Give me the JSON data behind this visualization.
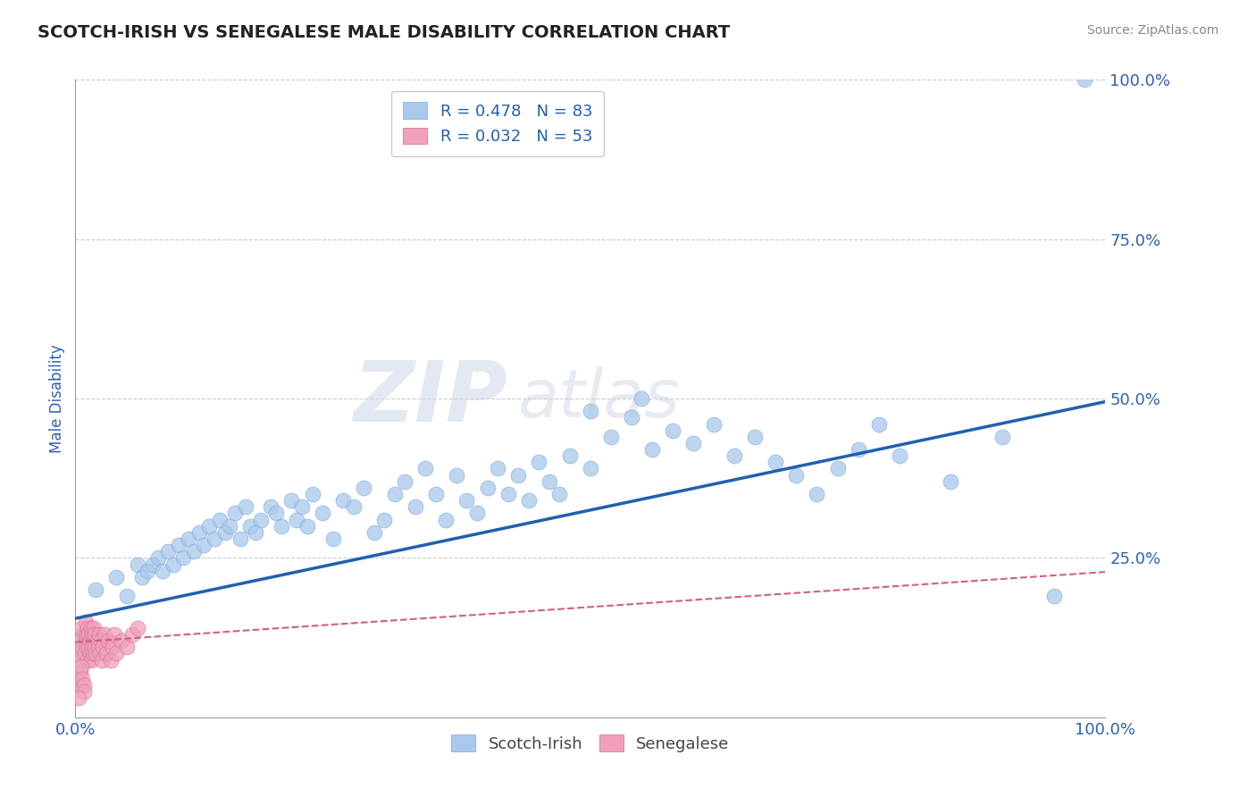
{
  "title": "SCOTCH-IRISH VS SENEGALESE MALE DISABILITY CORRELATION CHART",
  "source": "Source: ZipAtlas.com",
  "ylabel": "Male Disability",
  "xlim": [
    0,
    1.0
  ],
  "ylim": [
    0,
    1.0
  ],
  "scotch_irish_R": 0.478,
  "scotch_irish_N": 83,
  "senegalese_R": 0.032,
  "senegalese_N": 53,
  "scotch_irish_color": "#a8c8ec",
  "scotch_irish_edge_color": "#7aaad4",
  "scotch_irish_line_color": "#2060b0",
  "senegalese_color": "#f0a0b8",
  "senegalese_edge_color": "#d07090",
  "senegalese_line_color": "#d06080",
  "legend_text_color": "#2060b0",
  "watermark_zip": "ZIP",
  "watermark_atlas": "atlas",
  "background_color": "#ffffff",
  "grid_color": "#cccccc",
  "title_color": "#222222",
  "axis_label_color": "#3060b0",
  "scotch_irish_x": [
    0.02,
    0.04,
    0.05,
    0.06,
    0.065,
    0.07,
    0.075,
    0.08,
    0.085,
    0.09,
    0.095,
    0.1,
    0.105,
    0.11,
    0.115,
    0.12,
    0.125,
    0.13,
    0.135,
    0.14,
    0.145,
    0.15,
    0.155,
    0.16,
    0.165,
    0.17,
    0.175,
    0.18,
    0.19,
    0.195,
    0.2,
    0.21,
    0.215,
    0.22,
    0.225,
    0.23,
    0.24,
    0.25,
    0.26,
    0.27,
    0.28,
    0.29,
    0.3,
    0.31,
    0.32,
    0.33,
    0.34,
    0.35,
    0.36,
    0.37,
    0.38,
    0.39,
    0.4,
    0.41,
    0.42,
    0.43,
    0.44,
    0.45,
    0.46,
    0.47,
    0.48,
    0.5,
    0.52,
    0.54,
    0.56,
    0.58,
    0.6,
    0.62,
    0.64,
    0.66,
    0.68,
    0.7,
    0.72,
    0.74,
    0.76,
    0.78,
    0.8,
    0.85,
    0.9,
    0.95,
    0.5,
    0.55,
    0.98
  ],
  "scotch_irish_y": [
    0.2,
    0.22,
    0.19,
    0.24,
    0.22,
    0.23,
    0.24,
    0.25,
    0.23,
    0.26,
    0.24,
    0.27,
    0.25,
    0.28,
    0.26,
    0.29,
    0.27,
    0.3,
    0.28,
    0.31,
    0.29,
    0.3,
    0.32,
    0.28,
    0.33,
    0.3,
    0.29,
    0.31,
    0.33,
    0.32,
    0.3,
    0.34,
    0.31,
    0.33,
    0.3,
    0.35,
    0.32,
    0.28,
    0.34,
    0.33,
    0.36,
    0.29,
    0.31,
    0.35,
    0.37,
    0.33,
    0.39,
    0.35,
    0.31,
    0.38,
    0.34,
    0.32,
    0.36,
    0.39,
    0.35,
    0.38,
    0.34,
    0.4,
    0.37,
    0.35,
    0.41,
    0.39,
    0.44,
    0.47,
    0.42,
    0.45,
    0.43,
    0.46,
    0.41,
    0.44,
    0.4,
    0.38,
    0.35,
    0.39,
    0.42,
    0.46,
    0.41,
    0.37,
    0.44,
    0.19,
    0.48,
    0.5,
    1.0
  ],
  "senegalese_x": [
    0.003,
    0.004,
    0.005,
    0.006,
    0.007,
    0.008,
    0.009,
    0.01,
    0.01,
    0.011,
    0.011,
    0.012,
    0.012,
    0.013,
    0.013,
    0.014,
    0.014,
    0.015,
    0.015,
    0.016,
    0.016,
    0.017,
    0.018,
    0.018,
    0.019,
    0.019,
    0.02,
    0.021,
    0.022,
    0.023,
    0.024,
    0.025,
    0.026,
    0.027,
    0.028,
    0.03,
    0.032,
    0.034,
    0.036,
    0.038,
    0.04,
    0.045,
    0.05,
    0.055,
    0.06,
    0.003,
    0.004,
    0.005,
    0.006,
    0.007,
    0.008,
    0.008,
    0.003
  ],
  "senegalese_y": [
    0.1,
    0.12,
    0.09,
    0.14,
    0.11,
    0.13,
    0.1,
    0.12,
    0.15,
    0.11,
    0.13,
    0.09,
    0.14,
    0.11,
    0.13,
    0.1,
    0.12,
    0.09,
    0.14,
    0.11,
    0.13,
    0.1,
    0.12,
    0.14,
    0.11,
    0.13,
    0.1,
    0.12,
    0.11,
    0.13,
    0.1,
    0.12,
    0.09,
    0.11,
    0.13,
    0.1,
    0.12,
    0.09,
    0.11,
    0.13,
    0.1,
    0.12,
    0.11,
    0.13,
    0.14,
    0.06,
    0.05,
    0.07,
    0.08,
    0.06,
    0.05,
    0.04,
    0.03
  ],
  "si_line_x0": 0.0,
  "si_line_y0": 0.155,
  "si_line_x1": 1.0,
  "si_line_y1": 0.495,
  "sen_line_x0": 0.0,
  "sen_line_y0": 0.118,
  "sen_line_x1": 1.0,
  "sen_line_y1": 0.228
}
